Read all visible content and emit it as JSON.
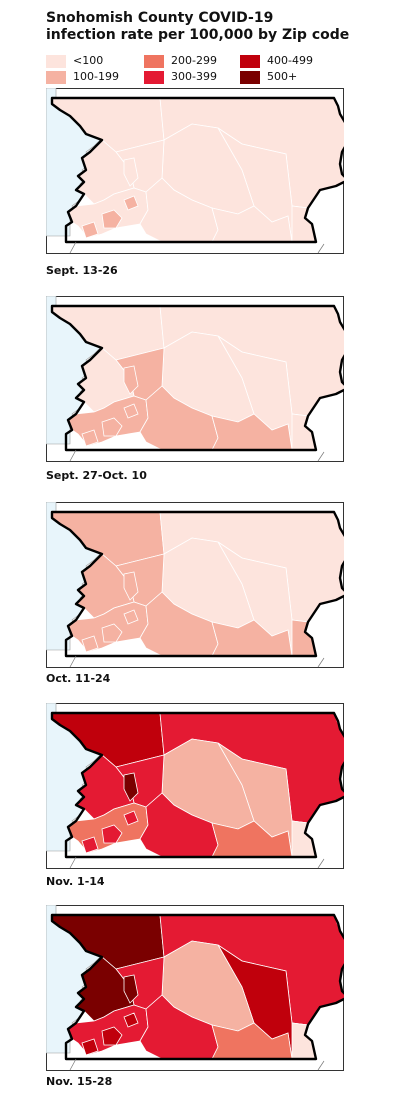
{
  "title_line1": "Snohomish County COVID-19",
  "title_line2": "infection rate per 100,000 by Zip code",
  "legend": [
    {
      "label": "<100",
      "color": "#fde4dd"
    },
    {
      "label": "100-199",
      "color": "#f5b2a2"
    },
    {
      "label": "200-299",
      "color": "#ef7460"
    },
    {
      "label": "300-399",
      "color": "#e41a33"
    },
    {
      "label": "400-499",
      "color": "#c0000c"
    },
    {
      "label": "500+",
      "color": "#7a0000"
    }
  ],
  "colors": {
    "water": "#e8f5fb",
    "outline": "#000000",
    "border": "#ffffff"
  },
  "panels": [
    {
      "label": "Sept. 13-26",
      "regions": {
        "nw": 0,
        "ne": 0,
        "west": 0,
        "center": 0,
        "east": 0,
        "cw": 0,
        "se": 0,
        "south": 0,
        "sc": 0,
        "cities": 1,
        "urban": 0,
        "hot": 0
      }
    },
    {
      "label": "Sept. 27-Oct. 10",
      "regions": {
        "nw": 0,
        "ne": 0,
        "west": 0,
        "center": 0,
        "east": 0,
        "cw": 1,
        "se": 0,
        "south": 1,
        "sc": 1,
        "cities": 1,
        "urban": 1,
        "hot": 1
      }
    },
    {
      "label": "Oct. 11-24",
      "regions": {
        "nw": 1,
        "ne": 0,
        "west": 1,
        "center": 0,
        "east": 0,
        "cw": 1,
        "se": 1,
        "south": 1,
        "sc": 1,
        "cities": 1,
        "urban": 1,
        "hot": 1
      }
    },
    {
      "label": "Nov. 1-14",
      "regions": {
        "nw": 4,
        "ne": 3,
        "west": 3,
        "center": 1,
        "east": 1,
        "cw": 3,
        "se": 0,
        "south": 3,
        "sc": 2,
        "cities": 3,
        "urban": 2,
        "hot": 5
      }
    },
    {
      "label": "Nov. 15-28",
      "regions": {
        "nw": 5,
        "ne": 3,
        "west": 5,
        "center": 1,
        "east": 4,
        "cw": 3,
        "se": 0,
        "south": 3,
        "sc": 2,
        "cities": 4,
        "urban": 3,
        "hot": 5
      }
    }
  ]
}
